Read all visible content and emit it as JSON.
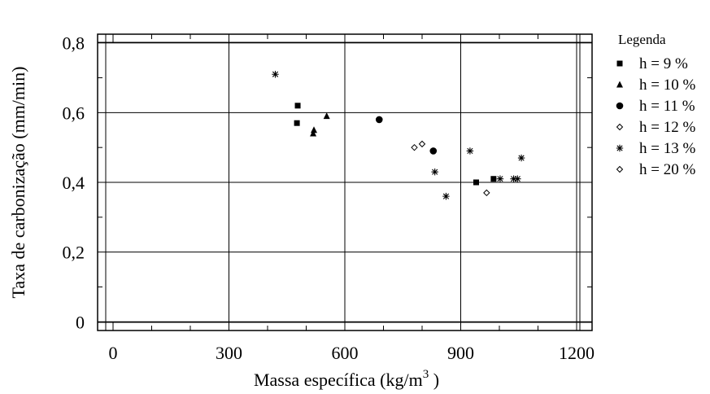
{
  "chart_data": {
    "type": "scatter",
    "xlabel": "Massa específica (kg/m",
    "xlabel_sup": "3",
    "xlabel_tail": " )",
    "ylabel": "Taxa de carbonização (mm/min)",
    "xlim": [
      -40,
      1240
    ],
    "ylim": [
      -0.025,
      0.825
    ],
    "x_ticks": [
      0,
      300,
      600,
      900,
      1200
    ],
    "x_tick_labels": [
      "0",
      "300",
      "600",
      "900",
      "1200"
    ],
    "y_ticks": [
      0,
      0.2,
      0.4,
      0.6,
      0.8
    ],
    "y_tick_labels": [
      "0",
      "0,2",
      "0,4",
      "0,6",
      "0,8"
    ],
    "grid": true,
    "legend_title": "Legenda",
    "legend_position": "right",
    "series": [
      {
        "name": "h = 9 %",
        "marker": "square",
        "x": [
          476,
          478,
          940,
          985
        ],
        "y": [
          0.57,
          0.62,
          0.4,
          0.41
        ]
      },
      {
        "name": "h = 10 %",
        "marker": "triangle",
        "x": [
          518,
          520,
          553
        ],
        "y": [
          0.54,
          0.55,
          0.59
        ]
      },
      {
        "name": "h = 11 %",
        "marker": "circle",
        "x": [
          689,
          829
        ],
        "y": [
          0.58,
          0.49
        ]
      },
      {
        "name": "h = 12 %",
        "marker": "diamond-open",
        "x": [
          780,
          800,
          967
        ],
        "y": [
          0.5,
          0.51,
          0.37
        ]
      },
      {
        "name": "h = 13 %",
        "marker": "asterisk",
        "x": [
          420,
          833,
          862,
          924,
          1002,
          1037,
          1047,
          1057
        ],
        "y": [
          0.71,
          0.43,
          0.36,
          0.49,
          0.41,
          0.41,
          0.41,
          0.47
        ]
      },
      {
        "name": "h = 20 %",
        "marker": "diamond-open",
        "x": [],
        "y": []
      }
    ]
  }
}
